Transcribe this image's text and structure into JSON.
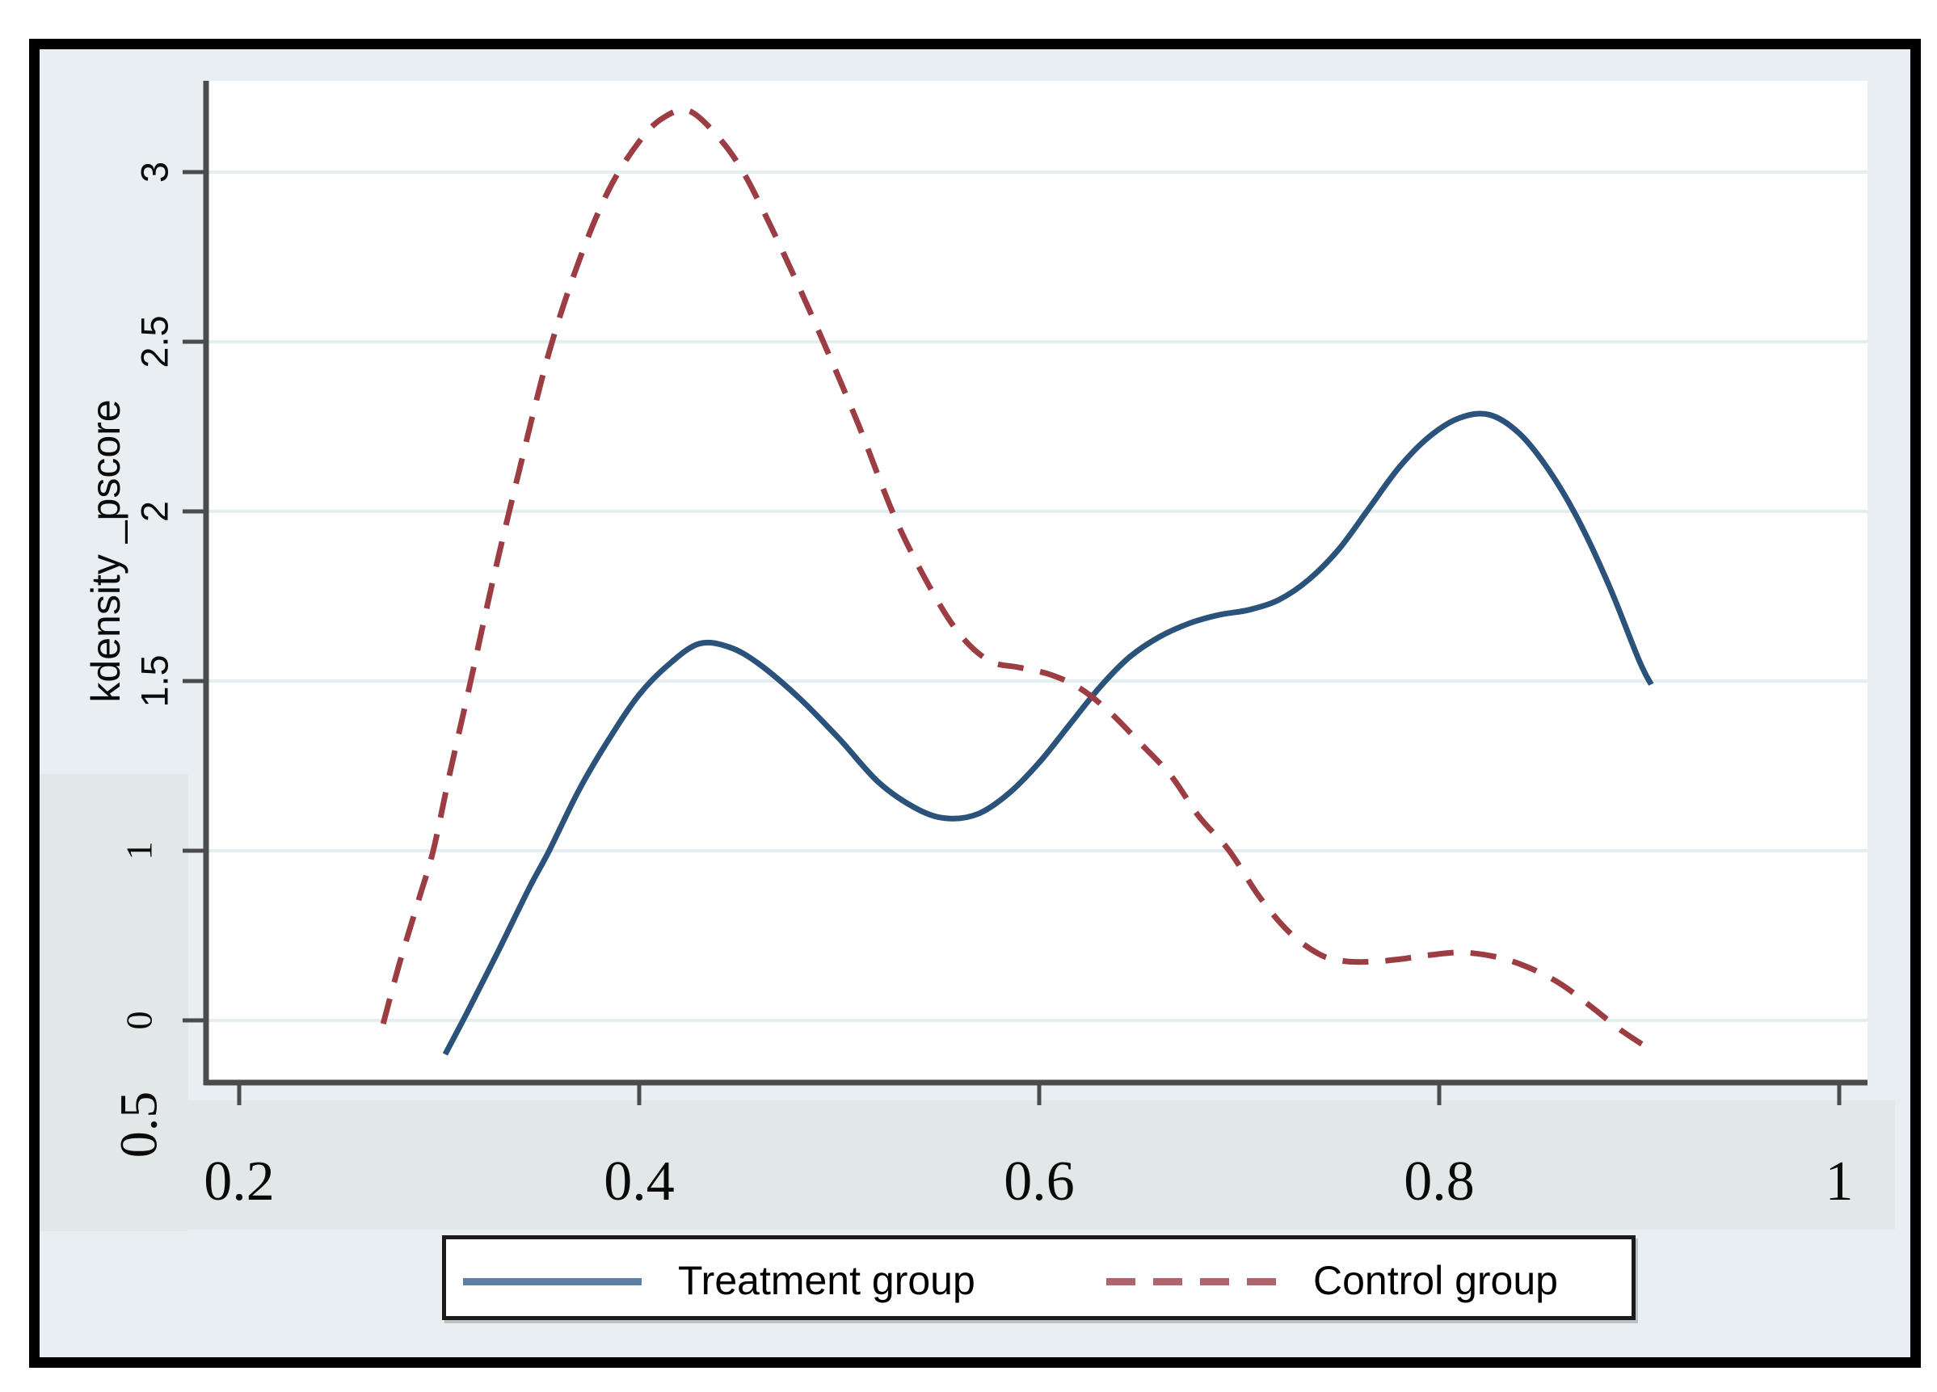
{
  "figure": {
    "kind": "stata-kdensity-figure",
    "colors": {
      "outer_bg": "#ffffff",
      "frame": "#000000",
      "inner_bg": "#e8eef1",
      "band": "#e2e8e7",
      "plot_bg": "#ffffff",
      "gridline": "#e4eef1",
      "axis": "#4b4b4b",
      "text": "#0a0a0a",
      "treatment": "#2a527b",
      "control": "#9c3c43",
      "legend_treatment_swatch": "#5d7fa1",
      "legend_control_swatch": "#ad666c"
    }
  },
  "chart_data": {
    "type": "line",
    "title": "",
    "xlabel": "",
    "ylabel": "kdensity _pscore",
    "grid": "horizontal",
    "legend_position": "bottom",
    "xlim": [
      0.155,
      1.015
    ],
    "x_ticks": [
      {
        "label": "0.2",
        "value": 0.2
      },
      {
        "label": "0.4",
        "value": 0.4
      },
      {
        "label": "0.6",
        "value": 0.6
      },
      {
        "label": "0.8",
        "value": 0.8
      },
      {
        "label": "1",
        "value": 1.0
      }
    ],
    "y_ticks": [
      {
        "label": "3",
        "value": 3,
        "font": "sans"
      },
      {
        "label": "2.5",
        "value": 2.5,
        "font": "sans"
      },
      {
        "label": "2",
        "value": 2,
        "font": "sans"
      },
      {
        "label": "1.5",
        "value": 1.5,
        "font": "sans"
      },
      {
        "label": "1",
        "value": 1,
        "font": "serif"
      },
      {
        "label": "0",
        "value": 0,
        "font": "serif"
      }
    ],
    "stray_y_label": "0.5",
    "series": [
      {
        "name": "Treatment group",
        "style": "solid",
        "color": "#2a527b",
        "points": [
          [
            0.303,
            -0.2
          ],
          [
            0.315,
            0.07
          ],
          [
            0.33,
            0.42
          ],
          [
            0.345,
            0.78
          ],
          [
            0.355,
            1.0
          ],
          [
            0.37,
            1.18
          ],
          [
            0.385,
            1.33
          ],
          [
            0.4,
            1.46
          ],
          [
            0.415,
            1.55
          ],
          [
            0.43,
            1.61
          ],
          [
            0.445,
            1.6
          ],
          [
            0.46,
            1.55
          ],
          [
            0.48,
            1.45
          ],
          [
            0.5,
            1.33
          ],
          [
            0.52,
            1.2
          ],
          [
            0.54,
            1.12
          ],
          [
            0.555,
            1.095
          ],
          [
            0.57,
            1.11
          ],
          [
            0.585,
            1.17
          ],
          [
            0.6,
            1.26
          ],
          [
            0.615,
            1.37
          ],
          [
            0.63,
            1.48
          ],
          [
            0.645,
            1.57
          ],
          [
            0.66,
            1.63
          ],
          [
            0.675,
            1.67
          ],
          [
            0.69,
            1.695
          ],
          [
            0.705,
            1.71
          ],
          [
            0.72,
            1.74
          ],
          [
            0.735,
            1.8
          ],
          [
            0.75,
            1.89
          ],
          [
            0.765,
            2.01
          ],
          [
            0.78,
            2.13
          ],
          [
            0.795,
            2.22
          ],
          [
            0.81,
            2.275
          ],
          [
            0.825,
            2.285
          ],
          [
            0.84,
            2.23
          ],
          [
            0.855,
            2.12
          ],
          [
            0.87,
            1.97
          ],
          [
            0.885,
            1.78
          ],
          [
            0.9,
            1.56
          ],
          [
            0.906,
            1.49
          ]
        ]
      },
      {
        "name": "Control group",
        "style": "dashed",
        "color": "#9c3c43",
        "points": [
          [
            0.272,
            -0.02
          ],
          [
            0.28,
            0.33
          ],
          [
            0.29,
            0.72
          ],
          [
            0.297,
            1.0
          ],
          [
            0.305,
            1.22
          ],
          [
            0.315,
            1.48
          ],
          [
            0.327,
            1.8
          ],
          [
            0.34,
            2.12
          ],
          [
            0.355,
            2.47
          ],
          [
            0.37,
            2.74
          ],
          [
            0.385,
            2.95
          ],
          [
            0.4,
            3.09
          ],
          [
            0.412,
            3.16
          ],
          [
            0.425,
            3.18
          ],
          [
            0.44,
            3.1
          ],
          [
            0.452,
            3.0
          ],
          [
            0.465,
            2.85
          ],
          [
            0.48,
            2.66
          ],
          [
            0.495,
            2.46
          ],
          [
            0.51,
            2.25
          ],
          [
            0.528,
            1.98
          ],
          [
            0.545,
            1.78
          ],
          [
            0.56,
            1.64
          ],
          [
            0.575,
            1.56
          ],
          [
            0.59,
            1.54
          ],
          [
            0.605,
            1.52
          ],
          [
            0.62,
            1.48
          ],
          [
            0.635,
            1.41
          ],
          [
            0.65,
            1.32
          ],
          [
            0.666,
            1.22
          ],
          [
            0.68,
            1.1
          ],
          [
            0.695,
            1.0
          ],
          [
            0.71,
            0.73
          ],
          [
            0.725,
            0.52
          ],
          [
            0.74,
            0.39
          ],
          [
            0.752,
            0.35
          ],
          [
            0.765,
            0.345
          ],
          [
            0.78,
            0.36
          ],
          [
            0.795,
            0.385
          ],
          [
            0.812,
            0.4
          ],
          [
            0.83,
            0.37
          ],
          [
            0.845,
            0.31
          ],
          [
            0.86,
            0.22
          ],
          [
            0.875,
            0.09
          ],
          [
            0.89,
            -0.05
          ],
          [
            0.904,
            -0.16
          ]
        ]
      }
    ]
  },
  "legend": {
    "items": [
      {
        "label": "Treatment group",
        "swatch": "solid-line"
      },
      {
        "label": "Control group",
        "swatch": "dashed-line"
      }
    ]
  }
}
